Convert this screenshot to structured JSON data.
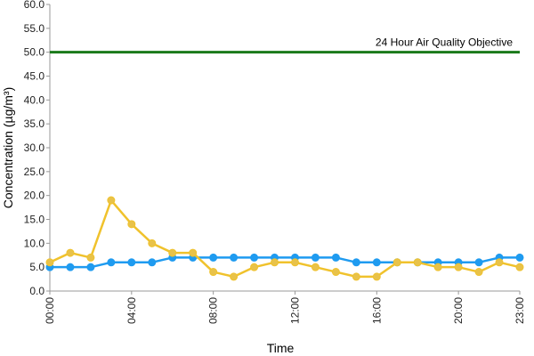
{
  "chart_data": {
    "type": "line",
    "xlabel": "Time",
    "ylabel": "Concentration (µg/m³)",
    "ylim": [
      0,
      60
    ],
    "yticks": [
      "0.0",
      "5.0",
      "10.0",
      "15.0",
      "20.0",
      "25.0",
      "30.0",
      "35.0",
      "40.0",
      "45.0",
      "50.0",
      "55.0",
      "60.0"
    ],
    "x": [
      0,
      1,
      2,
      3,
      4,
      5,
      6,
      7,
      8,
      9,
      10,
      11,
      12,
      13,
      14,
      15,
      16,
      17,
      18,
      19,
      20,
      21,
      22,
      23
    ],
    "xtick_labels": [
      {
        "x": 0,
        "label": "00:00"
      },
      {
        "x": 4,
        "label": "04:00"
      },
      {
        "x": 8,
        "label": "08:00"
      },
      {
        "x": 12,
        "label": "12:00"
      },
      {
        "x": 16,
        "label": "16:00"
      },
      {
        "x": 20,
        "label": "20:00"
      },
      {
        "x": 23,
        "label": "23:00"
      }
    ],
    "grid": false,
    "legend": "none",
    "series": [
      {
        "color": "#1f9bf0",
        "marker_color": "#1f9bf0",
        "values": [
          5,
          5,
          5,
          6,
          6,
          6,
          7,
          7,
          7,
          7,
          7,
          7,
          7,
          7,
          7,
          6,
          6,
          6,
          6,
          6,
          6,
          6,
          7,
          7
        ]
      },
      {
        "color": "#f0c22c",
        "marker_color": "#e8c24a",
        "values": [
          6,
          8,
          7,
          19,
          14,
          10,
          8,
          8,
          4,
          3,
          5,
          6,
          6,
          5,
          4,
          3,
          3,
          6,
          6,
          5,
          5,
          4,
          6,
          5
        ]
      }
    ],
    "reference_line": {
      "value": 50,
      "label": "24 Hour Air Quality Objective",
      "color": "#1a7a1a"
    }
  }
}
